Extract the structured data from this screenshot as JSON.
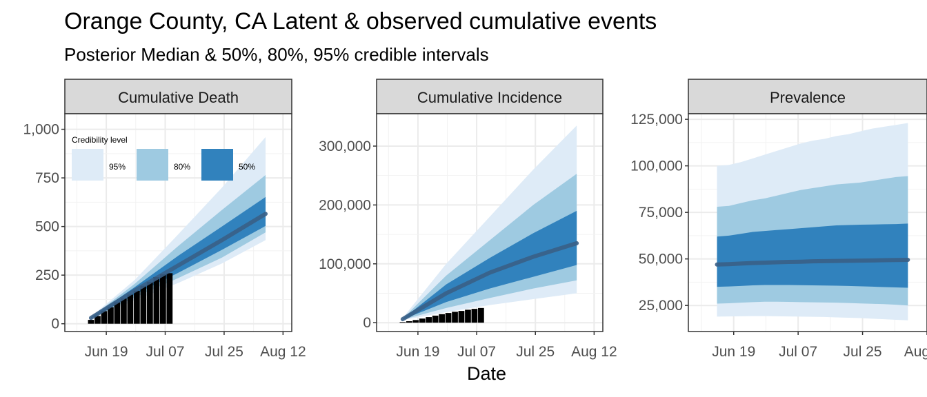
{
  "title": "Orange County, CA Latent & observed cumulative events",
  "subtitle": "Posterior Median & 50%, 80%, 95% credible intervals",
  "xlabel": "Date",
  "colors": {
    "band95": "#deebf7",
    "band80": "#9ecae1",
    "band50": "#3182bd",
    "median": "#3a5f86",
    "bars": "#000000",
    "strip_bg": "#d9d9d9",
    "grid": "#ebebeb"
  },
  "legend": {
    "title": "Credibility level",
    "entries": [
      "95%",
      "80%",
      "50%"
    ],
    "placement": "top-left of Cumulative Death panel"
  },
  "chart_data": [
    {
      "type": "area",
      "title": "Cumulative Death",
      "x_ticks": [
        "Jun 19",
        "Jul 07",
        "Jul 25",
        "Aug 12"
      ],
      "y_ticks": [
        "0",
        "250",
        "500",
        "750",
        "1,000"
      ],
      "ylim": [
        0,
        1000
      ],
      "bands": {
        "x": [
          12,
          32,
          52,
          72,
          92
        ],
        "median": [
          30,
          170,
          300,
          430,
          565
        ],
        "q25": [
          28,
          150,
          262,
          380,
          503
        ],
        "q75": [
          32,
          188,
          350,
          500,
          652
        ],
        "q10": [
          27,
          135,
          235,
          340,
          470
        ],
        "q90": [
          34,
          205,
          400,
          585,
          765
        ],
        "q025": [
          25,
          120,
          210,
          310,
          430
        ],
        "q975": [
          36,
          225,
          460,
          700,
          960
        ]
      },
      "bars": {
        "x": [
          12,
          15,
          18,
          21,
          24,
          27,
          30,
          33,
          36,
          39,
          42,
          45,
          48
        ],
        "values": [
          20,
          40,
          65,
          85,
          110,
          130,
          150,
          170,
          195,
          215,
          240,
          255,
          260
        ]
      }
    },
    {
      "type": "area",
      "title": "Cumulative Incidence",
      "x_ticks": [
        "Jun 19",
        "Jul 07",
        "Jul 25",
        "Aug 12"
      ],
      "y_ticks": [
        "0",
        "100,000",
        "200,000",
        "300,000"
      ],
      "ylim": [
        0,
        340000
      ],
      "bands": {
        "x": [
          12,
          32,
          52,
          72,
          92
        ],
        "median": [
          6000,
          50000,
          85000,
          112000,
          135000
        ],
        "q25": [
          5500,
          35000,
          58000,
          78000,
          98000
        ],
        "q75": [
          6500,
          65000,
          110000,
          152000,
          190000
        ],
        "q10": [
          5000,
          25000,
          42000,
          58000,
          72000
        ],
        "q90": [
          7000,
          80000,
          140000,
          200000,
          253000
        ],
        "q025": [
          4500,
          18000,
          30000,
          40000,
          50000
        ],
        "q975": [
          8000,
          100000,
          180000,
          260000,
          335000
        ]
      },
      "bars": {
        "x": [
          12,
          15,
          18,
          21,
          24,
          27,
          30,
          33,
          36,
          39,
          42,
          45,
          48
        ],
        "values": [
          1000,
          2500,
          4500,
          7000,
          9500,
          12000,
          14500,
          16500,
          18500,
          20000,
          22000,
          23500,
          25000
        ]
      }
    },
    {
      "type": "area",
      "title": "Prevalence",
      "x_ticks": [
        "Jun 19",
        "Jul 07",
        "Jul 25",
        "Aug 12"
      ],
      "y_ticks": [
        "25,000",
        "50,000",
        "75,000",
        "100,000",
        "125,000"
      ],
      "ylim": [
        12000,
        128000
      ],
      "bands": {
        "x": [
          12,
          17,
          22,
          27,
          32,
          37,
          42,
          47,
          52,
          57,
          62,
          67,
          72,
          77,
          82,
          87,
          92
        ],
        "median": [
          47000,
          47200,
          47500,
          47800,
          48000,
          48200,
          48400,
          48500,
          48700,
          48800,
          48900,
          49000,
          49100,
          49200,
          49300,
          49400,
          49500
        ],
        "q25": [
          35000,
          35200,
          35500,
          35800,
          36000,
          36000,
          36000,
          35900,
          35800,
          35700,
          35600,
          35500,
          35300,
          35100,
          34900,
          34700,
          34500
        ],
        "q75": [
          62000,
          62500,
          63500,
          64500,
          65000,
          65500,
          66000,
          66500,
          67000,
          67500,
          68000,
          68200,
          68400,
          68500,
          68600,
          68700,
          69000
        ],
        "q10": [
          26000,
          26200,
          26500,
          26800,
          27000,
          27000,
          26900,
          26800,
          26700,
          26600,
          26500,
          26300,
          26100,
          25900,
          25700,
          25400,
          25000
        ],
        "q90": [
          78000,
          78500,
          80000,
          81500,
          82500,
          84000,
          85500,
          87000,
          88000,
          89000,
          90000,
          90500,
          91000,
          92000,
          93000,
          94000,
          94500
        ],
        "q025": [
          19000,
          19100,
          19200,
          19300,
          19300,
          19200,
          19100,
          19000,
          18900,
          18800,
          18600,
          18400,
          18200,
          17900,
          17600,
          17300,
          17000
        ],
        "q975": [
          100000,
          100500,
          102000,
          104000,
          106000,
          108000,
          110000,
          112000,
          113500,
          114500,
          116000,
          117000,
          118500,
          120000,
          121000,
          122000,
          123000
        ]
      },
      "bars": {
        "x": [],
        "values": []
      }
    }
  ]
}
